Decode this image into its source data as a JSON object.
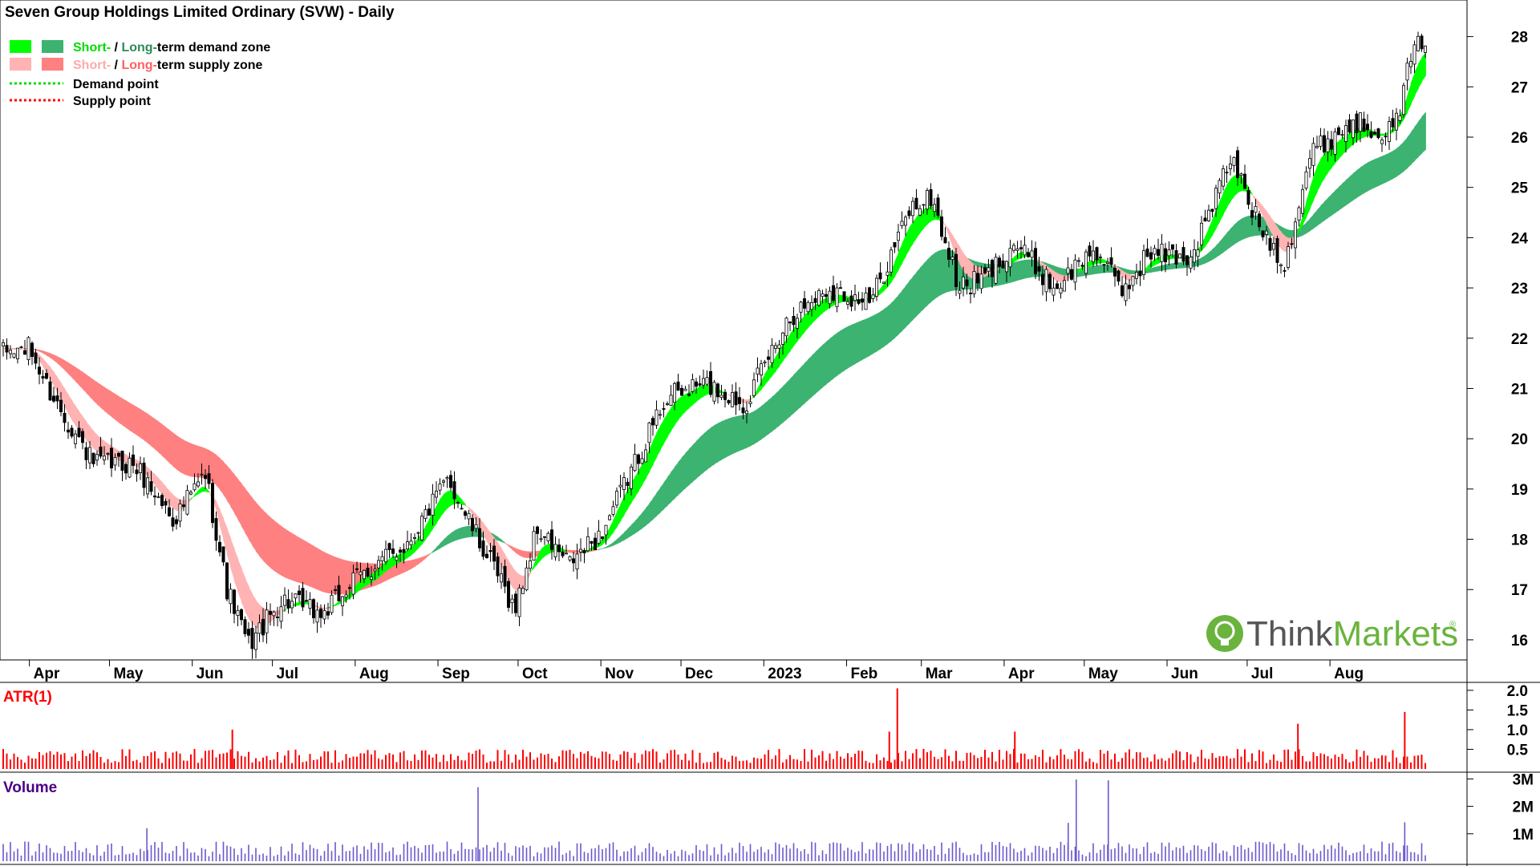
{
  "title": "Seven Group Holdings Limited Ordinary (SVW) - Daily",
  "legend": {
    "demand_zone": {
      "short": "Short-",
      "sep": " / ",
      "long": "Long-",
      "suffix": "term demand zone"
    },
    "supply_zone": {
      "short": "Short-",
      "sep": " / ",
      "long": "Long-",
      "suffix": "term supply zone"
    },
    "demand_point": "Demand point",
    "supply_point": "Supply point",
    "position": "top-left"
  },
  "logo": {
    "text_think": "Think",
    "text_markets": "Markets",
    "registered": "®"
  },
  "colors": {
    "short_demand": "#00ff00",
    "long_demand": "#3cb371",
    "short_supply": "#ffb3b3",
    "long_supply": "#ff8080",
    "overlap": "#ff7f24",
    "atr_bars": "#ff0000",
    "volume_bars": "#6a5acd",
    "atr_label": "#ff0000",
    "volume_label": "#4b0082",
    "logo_green": "#6ab43e"
  },
  "chart_data": [
    {
      "type": "candlestick",
      "title": "Seven Group Holdings Limited Ordinary (SVW) - Daily",
      "x_tick_labels": [
        "Apr",
        "May",
        "Jun",
        "Jul",
        "Aug",
        "Sep",
        "Oct",
        "Nov",
        "Dec",
        "2023",
        "Feb",
        "Mar",
        "Apr",
        "May",
        "Jun",
        "Jul",
        "Aug"
      ],
      "y_ticks": [
        16,
        17,
        18,
        19,
        20,
        21,
        22,
        23,
        24,
        25,
        26,
        27,
        28
      ],
      "ylim": [
        15.6,
        28.6
      ],
      "grid": false,
      "price_path": [
        {
          "date": "2022-03-21",
          "close": 21.7
        },
        {
          "date": "2022-04-01",
          "close": 21.8
        },
        {
          "date": "2022-04-08",
          "close": 21.0
        },
        {
          "date": "2022-04-25",
          "close": 19.5
        },
        {
          "date": "2022-05-10",
          "close": 19.5
        },
        {
          "date": "2022-05-25",
          "close": 18.4
        },
        {
          "date": "2022-06-06",
          "close": 19.3
        },
        {
          "date": "2022-06-14",
          "close": 17.0
        },
        {
          "date": "2022-06-22",
          "close": 15.9
        },
        {
          "date": "2022-07-05",
          "close": 16.8
        },
        {
          "date": "2022-07-20",
          "close": 16.5
        },
        {
          "date": "2022-08-01",
          "close": 17.2
        },
        {
          "date": "2022-08-20",
          "close": 17.9
        },
        {
          "date": "2022-09-05",
          "close": 19.2
        },
        {
          "date": "2022-09-15",
          "close": 18.1
        },
        {
          "date": "2022-09-30",
          "close": 16.6
        },
        {
          "date": "2022-10-08",
          "close": 18.2
        },
        {
          "date": "2022-10-20",
          "close": 17.5
        },
        {
          "date": "2022-11-01",
          "close": 18.1
        },
        {
          "date": "2022-11-10",
          "close": 19.1
        },
        {
          "date": "2022-11-25",
          "close": 20.8
        },
        {
          "date": "2022-12-10",
          "close": 21.1
        },
        {
          "date": "2022-12-25",
          "close": 20.7
        },
        {
          "date": "2023-01-10",
          "close": 22.4
        },
        {
          "date": "2023-01-25",
          "close": 23.0
        },
        {
          "date": "2023-02-10",
          "close": 22.7
        },
        {
          "date": "2023-02-25",
          "close": 24.6
        },
        {
          "date": "2023-03-05",
          "close": 24.8
        },
        {
          "date": "2023-03-15",
          "close": 23.0
        },
        {
          "date": "2023-03-25",
          "close": 23.2
        },
        {
          "date": "2023-04-05",
          "close": 23.9
        },
        {
          "date": "2023-04-20",
          "close": 23.0
        },
        {
          "date": "2023-05-05",
          "close": 23.8
        },
        {
          "date": "2023-05-15",
          "close": 22.9
        },
        {
          "date": "2023-05-25",
          "close": 23.7
        },
        {
          "date": "2023-06-10",
          "close": 23.6
        },
        {
          "date": "2023-06-25",
          "close": 25.6
        },
        {
          "date": "2023-07-05",
          "close": 24.3
        },
        {
          "date": "2023-07-15",
          "close": 23.5
        },
        {
          "date": "2023-07-25",
          "close": 25.7
        },
        {
          "date": "2023-08-10",
          "close": 26.3
        },
        {
          "date": "2023-08-25",
          "close": 26.1
        },
        {
          "date": "2023-08-31",
          "close": 27.5
        },
        {
          "date": "2023-09-05",
          "close": 28.0
        }
      ]
    },
    {
      "type": "bar",
      "title": "ATR(1)",
      "y_ticks": [
        0.5,
        1.0,
        1.5,
        2.0
      ],
      "y_tick_labels": [
        "0.5",
        "1.0",
        "1.5",
        "2.0"
      ],
      "ylim": [
        0,
        2.1
      ],
      "typical_value": 0.33,
      "peaks": [
        {
          "date": "2022-06-16",
          "value": 1.0
        },
        {
          "date": "2023-02-20",
          "value": 2.05
        },
        {
          "date": "2023-02-17",
          "value": 0.95
        },
        {
          "date": "2023-04-05",
          "value": 0.95
        },
        {
          "date": "2023-07-20",
          "value": 1.15
        },
        {
          "date": "2023-08-29",
          "value": 1.45
        }
      ]
    },
    {
      "type": "bar",
      "title": "Volume",
      "y_ticks": [
        1000000,
        2000000,
        3000000
      ],
      "y_tick_labels": [
        "1M",
        "2M",
        "3M"
      ],
      "ylim": [
        0,
        3100000
      ],
      "typical_value": 450000,
      "peaks": [
        {
          "date": "2022-05-15",
          "value": 1200000
        },
        {
          "date": "2022-09-16",
          "value": 2700000
        },
        {
          "date": "2023-04-28",
          "value": 2980000
        },
        {
          "date": "2023-05-10",
          "value": 2950000
        },
        {
          "date": "2023-04-25",
          "value": 1400000
        },
        {
          "date": "2023-08-29",
          "value": 1420000
        }
      ]
    }
  ]
}
